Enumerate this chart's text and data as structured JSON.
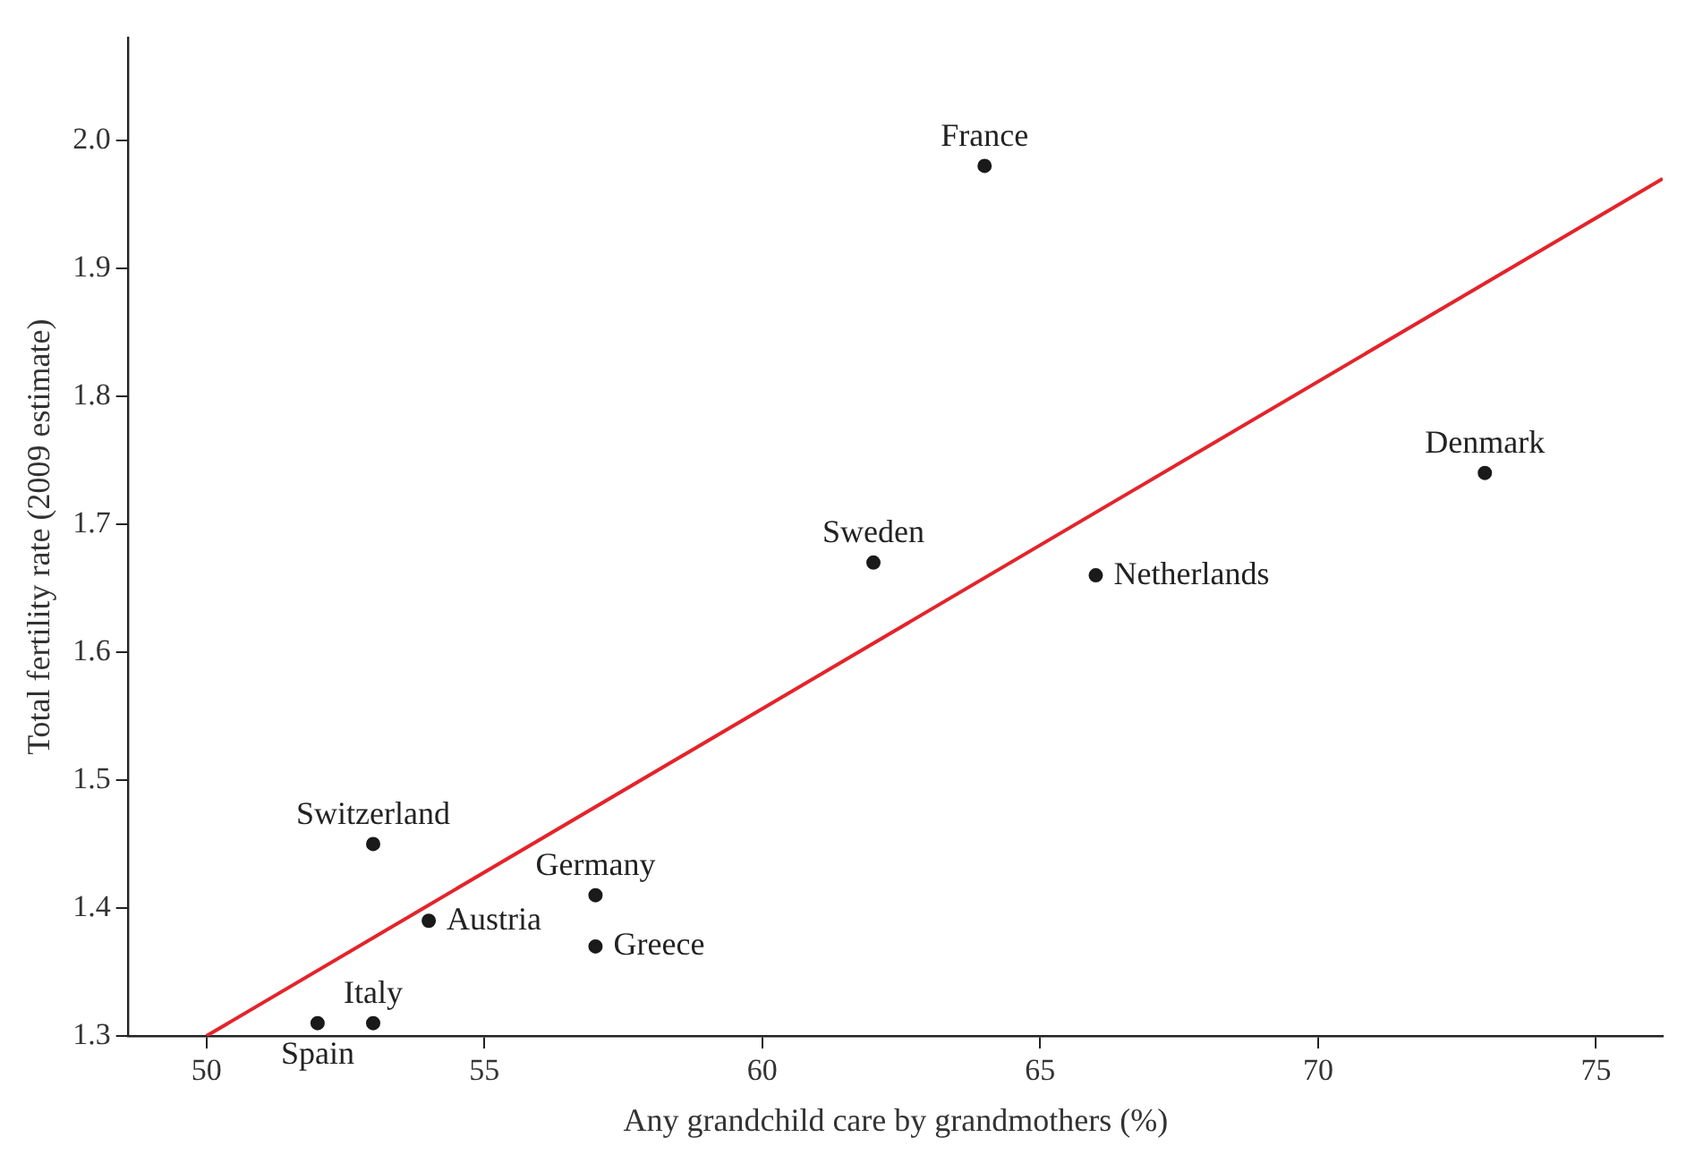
{
  "chart_data": {
    "type": "scatter",
    "xlabel": "Any grandchild care by grandmothers (%)",
    "ylabel": "Total fertility rate (2009 estimate)",
    "xlim": [
      48.6,
      76.2
    ],
    "xticks": [
      50,
      55,
      60,
      65,
      70,
      75
    ],
    "ylim": [
      1.3,
      2.08
    ],
    "yticks": [
      1.3,
      1.4,
      1.5,
      1.6,
      1.7,
      1.8,
      1.9,
      {
        "value": 2,
        "label": "2.0"
      }
    ],
    "grid": false,
    "series": [
      {
        "type": "scatter",
        "color": "#1a1a1a",
        "marker": "circle",
        "x": [
          64,
          73,
          62,
          66,
          53,
          57,
          54,
          57,
          52,
          53
        ],
        "values": [
          1.98,
          1.74,
          1.67,
          1.66,
          1.45,
          1.41,
          1.39,
          1.37,
          1.31,
          1.31
        ]
      },
      {
        "type": "line",
        "color": "#e3242b",
        "x": [
          50,
          76.2
        ],
        "values": [
          1.3,
          1.97
        ]
      }
    ],
    "annotations": [
      {
        "text": "France",
        "x": 64,
        "y": 1.98
      },
      {
        "text": "Denmark",
        "x": 73,
        "y": 1.74
      },
      {
        "text": "Sweden",
        "x": 62,
        "y": 1.67
      },
      {
        "text": "Netherlands",
        "x": 66,
        "y": 1.66
      },
      {
        "text": "Switzerland",
        "x": 53,
        "y": 1.45
      },
      {
        "text": "Germany",
        "x": 57,
        "y": 1.41
      },
      {
        "text": "Austria",
        "x": 54,
        "y": 1.39
      },
      {
        "text": "Greece",
        "x": 57,
        "y": 1.37
      },
      {
        "text": "Spain",
        "x": 52,
        "y": 1.31
      },
      {
        "text": "Italy",
        "x": 53,
        "y": 1.31
      }
    ]
  }
}
